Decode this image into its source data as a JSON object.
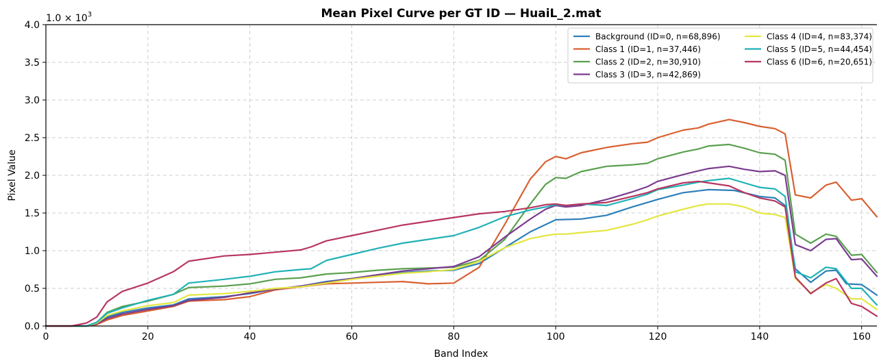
{
  "chart_data": {
    "type": "line",
    "title": "Mean Pixel Curve per GT ID — HuaiL_2.mat",
    "xlabel": "Band Index",
    "ylabel": "Pixel Value",
    "scale_label_base": "1.0 × 10",
    "scale_label_exp": "3",
    "xlim": [
      0,
      163
    ],
    "ylim": [
      0,
      4.0
    ],
    "xticks": [
      0,
      20,
      40,
      60,
      80,
      100,
      120,
      140,
      160
    ],
    "xtick_labels": [
      "0",
      "20",
      "40",
      "60",
      "80",
      "100",
      "120",
      "140",
      "160"
    ],
    "yticks": [
      0,
      0.5,
      1.0,
      1.5,
      2.0,
      2.5,
      3.0,
      3.5,
      4.0
    ],
    "ytick_labels": [
      "0.0",
      "0.5",
      "1.0",
      "1.5",
      "2.0",
      "2.5",
      "3.0",
      "3.5",
      "4.0"
    ],
    "grid": true,
    "legend_position": "top-right",
    "series": [
      {
        "name": "Background (ID=0, n=68,896)",
        "color": "#2c7fb8",
        "x": [
          0,
          8,
          10,
          12,
          15,
          20,
          25,
          28,
          35,
          40,
          45,
          50,
          55,
          60,
          65,
          70,
          75,
          80,
          85,
          90,
          95,
          100,
          105,
          110,
          115,
          120,
          125,
          130,
          135,
          140,
          143,
          145,
          147,
          150,
          153,
          155,
          157,
          160,
          163
        ],
        "y": [
          0,
          0,
          0.03,
          0.12,
          0.18,
          0.24,
          0.28,
          0.36,
          0.39,
          0.43,
          0.49,
          0.53,
          0.59,
          0.63,
          0.67,
          0.71,
          0.73,
          0.74,
          0.83,
          1.04,
          1.25,
          1.41,
          1.42,
          1.47,
          1.58,
          1.68,
          1.77,
          1.81,
          1.8,
          1.72,
          1.7,
          1.6,
          0.76,
          0.58,
          0.73,
          0.74,
          0.56,
          0.55,
          0.41
        ]
      },
      {
        "name": "Class 1 (ID=1, n=37,446)",
        "color": "#d95f30",
        "x": [
          0,
          8,
          10,
          12,
          15,
          20,
          25,
          28,
          35,
          40,
          45,
          50,
          55,
          60,
          65,
          70,
          75,
          80,
          85,
          90,
          95,
          98,
          100,
          102,
          105,
          110,
          115,
          118,
          120,
          125,
          128,
          130,
          134,
          137,
          140,
          143,
          145,
          147,
          150,
          153,
          155,
          158,
          160,
          163
        ],
        "y": [
          0,
          0,
          0.02,
          0.08,
          0.14,
          0.2,
          0.26,
          0.33,
          0.35,
          0.39,
          0.48,
          0.52,
          0.56,
          0.57,
          0.58,
          0.59,
          0.56,
          0.57,
          0.78,
          1.35,
          1.95,
          2.18,
          2.25,
          2.22,
          2.3,
          2.37,
          2.42,
          2.44,
          2.5,
          2.6,
          2.63,
          2.68,
          2.74,
          2.7,
          2.65,
          2.62,
          2.55,
          1.74,
          1.7,
          1.87,
          1.91,
          1.67,
          1.69,
          1.45
        ]
      },
      {
        "name": "Class 2 (ID=2, n=30,910)",
        "color": "#5aa04f",
        "x": [
          0,
          8,
          10,
          12,
          15,
          20,
          25,
          28,
          35,
          40,
          45,
          50,
          55,
          60,
          65,
          70,
          75,
          80,
          85,
          90,
          95,
          98,
          100,
          102,
          105,
          110,
          115,
          118,
          120,
          125,
          128,
          130,
          134,
          137,
          140,
          143,
          145,
          147,
          150,
          153,
          155,
          158,
          160,
          163
        ],
        "y": [
          0,
          0,
          0.05,
          0.18,
          0.26,
          0.33,
          0.42,
          0.51,
          0.53,
          0.56,
          0.62,
          0.64,
          0.69,
          0.71,
          0.74,
          0.76,
          0.77,
          0.78,
          0.87,
          1.15,
          1.62,
          1.88,
          1.97,
          1.96,
          2.05,
          2.12,
          2.14,
          2.16,
          2.22,
          2.31,
          2.35,
          2.39,
          2.41,
          2.36,
          2.3,
          2.28,
          2.2,
          1.22,
          1.1,
          1.22,
          1.19,
          0.94,
          0.95,
          0.71
        ]
      },
      {
        "name": "Class 3 (ID=3, n=42,869)",
        "color": "#7a3b8f",
        "x": [
          0,
          8,
          10,
          12,
          15,
          20,
          25,
          28,
          35,
          40,
          45,
          50,
          55,
          60,
          65,
          70,
          75,
          80,
          85,
          90,
          95,
          98,
          100,
          102,
          105,
          110,
          115,
          118,
          120,
          125,
          128,
          130,
          134,
          137,
          140,
          143,
          145,
          147,
          150,
          153,
          155,
          158,
          160,
          163
        ],
        "y": [
          0,
          0,
          0.03,
          0.1,
          0.16,
          0.22,
          0.27,
          0.34,
          0.38,
          0.44,
          0.49,
          0.53,
          0.58,
          0.63,
          0.68,
          0.73,
          0.76,
          0.79,
          0.92,
          1.18,
          1.42,
          1.55,
          1.6,
          1.58,
          1.6,
          1.68,
          1.78,
          1.85,
          1.92,
          2.01,
          2.06,
          2.09,
          2.12,
          2.08,
          2.05,
          2.06,
          2.0,
          1.08,
          1.0,
          1.15,
          1.16,
          0.88,
          0.89,
          0.66
        ]
      },
      {
        "name": "Class 4 (ID=4, n=83,374)",
        "color": "#e4e640",
        "x": [
          0,
          8,
          10,
          12,
          15,
          20,
          25,
          28,
          35,
          40,
          45,
          50,
          55,
          60,
          65,
          70,
          75,
          80,
          85,
          90,
          95,
          98,
          100,
          102,
          105,
          110,
          115,
          118,
          120,
          125,
          128,
          130,
          134,
          137,
          140,
          143,
          145,
          147,
          150,
          153,
          155,
          158,
          160,
          163
        ],
        "y": [
          0,
          0,
          0.04,
          0.14,
          0.2,
          0.27,
          0.31,
          0.41,
          0.43,
          0.46,
          0.5,
          0.52,
          0.57,
          0.62,
          0.66,
          0.7,
          0.72,
          0.75,
          0.86,
          1.04,
          1.16,
          1.2,
          1.22,
          1.22,
          1.24,
          1.27,
          1.35,
          1.41,
          1.46,
          1.55,
          1.6,
          1.62,
          1.62,
          1.58,
          1.5,
          1.48,
          1.44,
          0.63,
          0.44,
          0.55,
          0.5,
          0.36,
          0.36,
          0.22
        ]
      },
      {
        "name": "Class 5 (ID=5, n=44,454)",
        "color": "#1fb1b6",
        "x": [
          0,
          8,
          10,
          12,
          15,
          20,
          25,
          28,
          35,
          40,
          45,
          50,
          52,
          55,
          60,
          65,
          70,
          75,
          80,
          85,
          90,
          95,
          98,
          100,
          102,
          105,
          110,
          115,
          118,
          120,
          125,
          128,
          130,
          134,
          137,
          140,
          143,
          145,
          147,
          150,
          153,
          155,
          158,
          160,
          163
        ],
        "y": [
          0,
          0,
          0.05,
          0.17,
          0.24,
          0.34,
          0.42,
          0.57,
          0.62,
          0.66,
          0.72,
          0.75,
          0.76,
          0.87,
          0.95,
          1.03,
          1.1,
          1.15,
          1.2,
          1.31,
          1.45,
          1.54,
          1.58,
          1.61,
          1.6,
          1.62,
          1.6,
          1.69,
          1.75,
          1.81,
          1.87,
          1.91,
          1.93,
          1.96,
          1.9,
          1.84,
          1.82,
          1.72,
          0.72,
          0.64,
          0.78,
          0.76,
          0.5,
          0.5,
          0.28
        ]
      },
      {
        "name": "Class 6 (ID=6, n=20,651)",
        "color": "#b83561",
        "x": [
          0,
          5,
          8,
          10,
          12,
          15,
          20,
          25,
          28,
          35,
          40,
          45,
          50,
          52,
          55,
          60,
          65,
          70,
          75,
          80,
          85,
          90,
          95,
          98,
          100,
          102,
          105,
          110,
          115,
          118,
          120,
          125,
          128,
          130,
          134,
          137,
          140,
          143,
          145,
          147,
          150,
          153,
          155,
          158,
          160,
          163
        ],
        "y": [
          0,
          0,
          0.04,
          0.12,
          0.32,
          0.46,
          0.57,
          0.72,
          0.86,
          0.93,
          0.95,
          0.98,
          1.01,
          1.05,
          1.13,
          1.2,
          1.27,
          1.34,
          1.39,
          1.44,
          1.49,
          1.52,
          1.57,
          1.61,
          1.62,
          1.6,
          1.62,
          1.64,
          1.72,
          1.77,
          1.82,
          1.9,
          1.92,
          1.9,
          1.86,
          1.77,
          1.7,
          1.66,
          1.58,
          0.65,
          0.43,
          0.57,
          0.63,
          0.3,
          0.26,
          0.13
        ]
      }
    ]
  }
}
